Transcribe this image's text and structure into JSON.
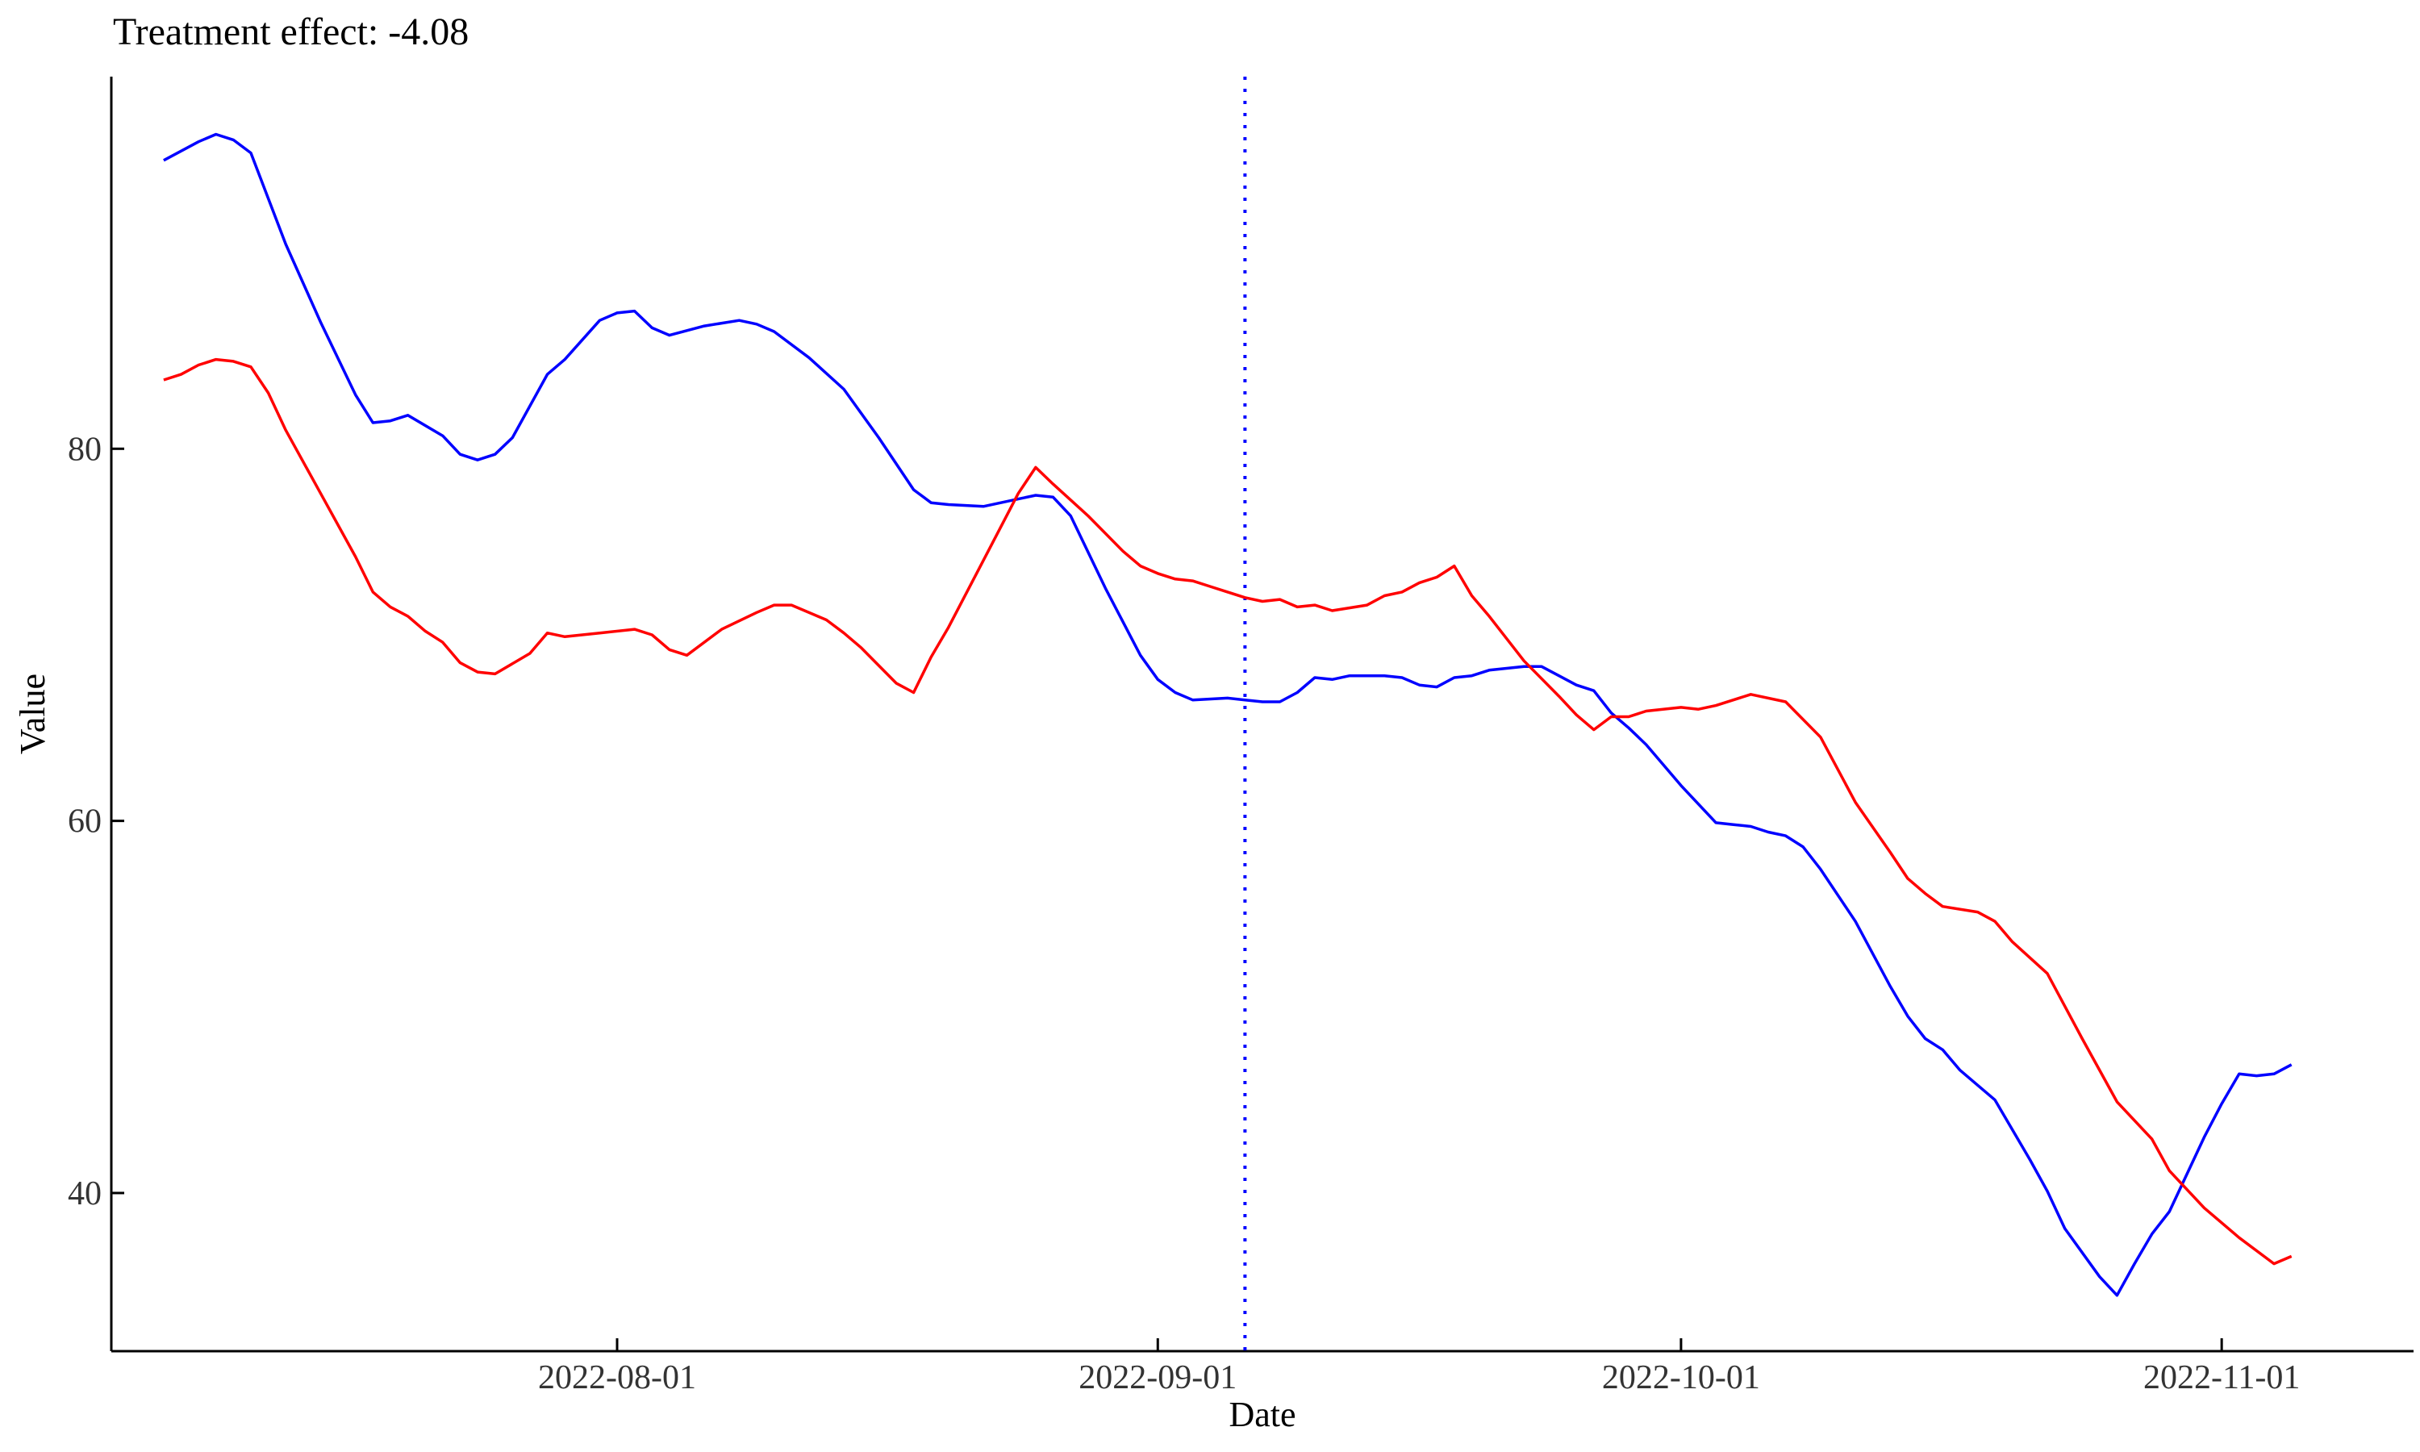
{
  "chart_data": {
    "type": "line",
    "title": "Treatment effect: -4.08",
    "xlabel": "Date",
    "ylabel": "Value",
    "xlim": [
      "2022-07-03",
      "2022-11-12"
    ],
    "ylim": [
      31.5,
      100
    ],
    "x_ticks": [
      "2022-08-01",
      "2022-09-01",
      "2022-10-01",
      "2022-11-01"
    ],
    "y_ticks": [
      40,
      60,
      80
    ],
    "grid": false,
    "legend": "none",
    "intervention": {
      "date": "2022-09-06",
      "color": "#0000ff",
      "style": "dotted"
    },
    "series": [
      {
        "color": "#0000ff",
        "points": [
          [
            "2022-07-06",
            95.5
          ],
          [
            "2022-07-08",
            96.5
          ],
          [
            "2022-07-09",
            96.9
          ],
          [
            "2022-07-10",
            96.6
          ],
          [
            "2022-07-11",
            95.9
          ],
          [
            "2022-07-13",
            91.0
          ],
          [
            "2022-07-15",
            86.8
          ],
          [
            "2022-07-17",
            82.9
          ],
          [
            "2022-07-18",
            81.4
          ],
          [
            "2022-07-19",
            81.5
          ],
          [
            "2022-07-20",
            81.8
          ],
          [
            "2022-07-22",
            80.7
          ],
          [
            "2022-07-23",
            79.7
          ],
          [
            "2022-07-24",
            79.4
          ],
          [
            "2022-07-25",
            79.7
          ],
          [
            "2022-07-26",
            80.6
          ],
          [
            "2022-07-28",
            84.0
          ],
          [
            "2022-07-29",
            84.8
          ],
          [
            "2022-07-31",
            86.9
          ],
          [
            "2022-08-01",
            87.3
          ],
          [
            "2022-08-02",
            87.4
          ],
          [
            "2022-08-03",
            86.5
          ],
          [
            "2022-08-04",
            86.1
          ],
          [
            "2022-08-06",
            86.6
          ],
          [
            "2022-08-08",
            86.9
          ],
          [
            "2022-08-09",
            86.7
          ],
          [
            "2022-08-10",
            86.3
          ],
          [
            "2022-08-12",
            84.9
          ],
          [
            "2022-08-14",
            83.2
          ],
          [
            "2022-08-16",
            80.6
          ],
          [
            "2022-08-18",
            77.8
          ],
          [
            "2022-08-19",
            77.1
          ],
          [
            "2022-08-20",
            77.0
          ],
          [
            "2022-08-22",
            76.9
          ],
          [
            "2022-08-24",
            77.3
          ],
          [
            "2022-08-25",
            77.5
          ],
          [
            "2022-08-26",
            77.4
          ],
          [
            "2022-08-27",
            76.4
          ],
          [
            "2022-08-29",
            72.5
          ],
          [
            "2022-08-31",
            68.9
          ],
          [
            "2022-09-01",
            67.6
          ],
          [
            "2022-09-02",
            66.9
          ],
          [
            "2022-09-03",
            66.5
          ],
          [
            "2022-09-05",
            66.6
          ],
          [
            "2022-09-06",
            66.5
          ],
          [
            "2022-09-07",
            66.4
          ],
          [
            "2022-09-08",
            66.4
          ],
          [
            "2022-09-09",
            66.9
          ],
          [
            "2022-09-10",
            67.7
          ],
          [
            "2022-09-11",
            67.6
          ],
          [
            "2022-09-12",
            67.8
          ],
          [
            "2022-09-14",
            67.8
          ],
          [
            "2022-09-15",
            67.7
          ],
          [
            "2022-09-16",
            67.3
          ],
          [
            "2022-09-17",
            67.2
          ],
          [
            "2022-09-18",
            67.7
          ],
          [
            "2022-09-19",
            67.8
          ],
          [
            "2022-09-20",
            68.1
          ],
          [
            "2022-09-22",
            68.3
          ],
          [
            "2022-09-23",
            68.3
          ],
          [
            "2022-09-24",
            67.8
          ],
          [
            "2022-09-25",
            67.3
          ],
          [
            "2022-09-26",
            67.0
          ],
          [
            "2022-09-27",
            65.8
          ],
          [
            "2022-09-28",
            65.0
          ],
          [
            "2022-09-29",
            64.1
          ],
          [
            "2022-10-01",
            61.9
          ],
          [
            "2022-10-03",
            59.9
          ],
          [
            "2022-10-04",
            59.8
          ],
          [
            "2022-10-05",
            59.7
          ],
          [
            "2022-10-06",
            59.4
          ],
          [
            "2022-10-07",
            59.2
          ],
          [
            "2022-10-08",
            58.6
          ],
          [
            "2022-10-09",
            57.4
          ],
          [
            "2022-10-11",
            54.6
          ],
          [
            "2022-10-13",
            51.1
          ],
          [
            "2022-10-14",
            49.5
          ],
          [
            "2022-10-15",
            48.3
          ],
          [
            "2022-10-16",
            47.7
          ],
          [
            "2022-10-17",
            46.6
          ],
          [
            "2022-10-18",
            45.8
          ],
          [
            "2022-10-19",
            45.0
          ],
          [
            "2022-10-21",
            41.8
          ],
          [
            "2022-10-22",
            40.1
          ],
          [
            "2022-10-23",
            38.1
          ],
          [
            "2022-10-25",
            35.5
          ],
          [
            "2022-10-26",
            34.5
          ],
          [
            "2022-10-27",
            36.2
          ],
          [
            "2022-10-28",
            37.8
          ],
          [
            "2022-10-29",
            39.0
          ],
          [
            "2022-10-31",
            43.0
          ],
          [
            "2022-11-01",
            44.8
          ],
          [
            "2022-11-02",
            46.4
          ],
          [
            "2022-11-03",
            46.3
          ],
          [
            "2022-11-04",
            46.4
          ],
          [
            "2022-11-05",
            46.9
          ]
        ]
      },
      {
        "color": "#ff0000",
        "points": [
          [
            "2022-07-06",
            83.7
          ],
          [
            "2022-07-07",
            84.0
          ],
          [
            "2022-07-08",
            84.5
          ],
          [
            "2022-07-09",
            84.8
          ],
          [
            "2022-07-10",
            84.7
          ],
          [
            "2022-07-11",
            84.4
          ],
          [
            "2022-07-12",
            83.0
          ],
          [
            "2022-07-13",
            81.0
          ],
          [
            "2022-07-15",
            77.6
          ],
          [
            "2022-07-17",
            74.2
          ],
          [
            "2022-07-18",
            72.3
          ],
          [
            "2022-07-19",
            71.5
          ],
          [
            "2022-07-20",
            71.0
          ],
          [
            "2022-07-21",
            70.2
          ],
          [
            "2022-07-22",
            69.6
          ],
          [
            "2022-07-23",
            68.5
          ],
          [
            "2022-07-24",
            68.0
          ],
          [
            "2022-07-25",
            67.9
          ],
          [
            "2022-07-27",
            69.0
          ],
          [
            "2022-07-28",
            70.1
          ],
          [
            "2022-07-29",
            69.9
          ],
          [
            "2022-07-31",
            70.1
          ],
          [
            "2022-08-02",
            70.3
          ],
          [
            "2022-08-03",
            70.0
          ],
          [
            "2022-08-04",
            69.2
          ],
          [
            "2022-08-05",
            68.9
          ],
          [
            "2022-08-07",
            70.3
          ],
          [
            "2022-08-09",
            71.2
          ],
          [
            "2022-08-10",
            71.6
          ],
          [
            "2022-08-11",
            71.6
          ],
          [
            "2022-08-13",
            70.8
          ],
          [
            "2022-08-14",
            70.1
          ],
          [
            "2022-08-15",
            69.3
          ],
          [
            "2022-08-17",
            67.4
          ],
          [
            "2022-08-18",
            66.9
          ],
          [
            "2022-08-19",
            68.8
          ],
          [
            "2022-08-20",
            70.4
          ],
          [
            "2022-08-22",
            74.0
          ],
          [
            "2022-08-24",
            77.6
          ],
          [
            "2022-08-25",
            79.0
          ],
          [
            "2022-08-26",
            78.1
          ],
          [
            "2022-08-28",
            76.4
          ],
          [
            "2022-08-30",
            74.5
          ],
          [
            "2022-08-31",
            73.7
          ],
          [
            "2022-09-01",
            73.3
          ],
          [
            "2022-09-02",
            73.0
          ],
          [
            "2022-09-03",
            72.9
          ],
          [
            "2022-09-04",
            72.6
          ],
          [
            "2022-09-05",
            72.3
          ],
          [
            "2022-09-06",
            72.0
          ],
          [
            "2022-09-07",
            71.8
          ],
          [
            "2022-09-08",
            71.9
          ],
          [
            "2022-09-09",
            71.5
          ],
          [
            "2022-09-10",
            71.6
          ],
          [
            "2022-09-11",
            71.3
          ],
          [
            "2022-09-13",
            71.6
          ],
          [
            "2022-09-14",
            72.1
          ],
          [
            "2022-09-15",
            72.3
          ],
          [
            "2022-09-16",
            72.8
          ],
          [
            "2022-09-17",
            73.1
          ],
          [
            "2022-09-18",
            73.7
          ],
          [
            "2022-09-19",
            72.1
          ],
          [
            "2022-09-20",
            71.0
          ],
          [
            "2022-09-22",
            68.6
          ],
          [
            "2022-09-24",
            66.7
          ],
          [
            "2022-09-25",
            65.7
          ],
          [
            "2022-09-26",
            64.9
          ],
          [
            "2022-09-27",
            65.6
          ],
          [
            "2022-09-28",
            65.6
          ],
          [
            "2022-09-29",
            65.9
          ],
          [
            "2022-10-01",
            66.1
          ],
          [
            "2022-10-02",
            66.0
          ],
          [
            "2022-10-03",
            66.2
          ],
          [
            "2022-10-05",
            66.8
          ],
          [
            "2022-10-07",
            66.4
          ],
          [
            "2022-10-09",
            64.5
          ],
          [
            "2022-10-11",
            61.0
          ],
          [
            "2022-10-13",
            58.3
          ],
          [
            "2022-10-14",
            56.9
          ],
          [
            "2022-10-15",
            56.1
          ],
          [
            "2022-10-16",
            55.4
          ],
          [
            "2022-10-18",
            55.1
          ],
          [
            "2022-10-19",
            54.6
          ],
          [
            "2022-10-20",
            53.5
          ],
          [
            "2022-10-22",
            51.8
          ],
          [
            "2022-10-24",
            48.3
          ],
          [
            "2022-10-26",
            44.9
          ],
          [
            "2022-10-28",
            42.9
          ],
          [
            "2022-10-29",
            41.2
          ],
          [
            "2022-10-31",
            39.2
          ],
          [
            "2022-11-02",
            37.6
          ],
          [
            "2022-11-04",
            36.2
          ],
          [
            "2022-11-05",
            36.6
          ]
        ]
      }
    ]
  }
}
